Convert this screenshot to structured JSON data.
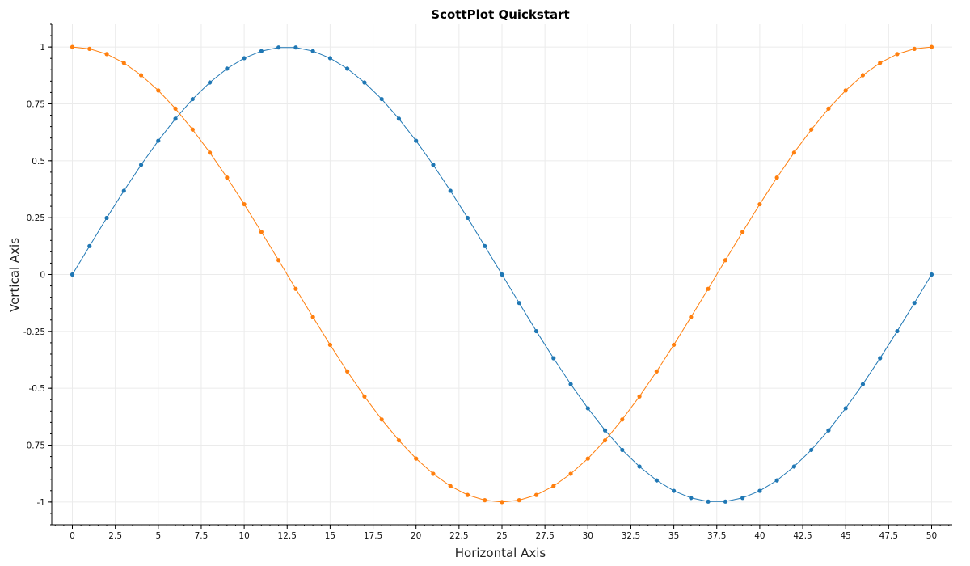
{
  "chart_data": {
    "type": "scatter",
    "title": "ScottPlot Quickstart",
    "xlabel": "Horizontal Axis",
    "ylabel": "Vertical Axis",
    "xlim": [
      -1.2,
      51.2
    ],
    "ylim": [
      -1.1,
      1.1
    ],
    "x_ticks": [
      0,
      2.5,
      5,
      7.5,
      10,
      12.5,
      15,
      17.5,
      20,
      22.5,
      25,
      27.5,
      30,
      32.5,
      35,
      37.5,
      40,
      42.5,
      45,
      47.5,
      50
    ],
    "x_tick_labels": [
      "0",
      "2.5",
      "5",
      "7.5",
      "10",
      "12.5",
      "15",
      "17.5",
      "20",
      "22.5",
      "25",
      "27.5",
      "30",
      "32.5",
      "35",
      "37.5",
      "40",
      "42.5",
      "45",
      "47.5",
      "50"
    ],
    "y_ticks": [
      1,
      0.75,
      0.5,
      0.25,
      0,
      -0.25,
      -0.5,
      -0.75,
      -1
    ],
    "y_tick_labels": [
      "1",
      "0.75",
      "0.5",
      "0.25",
      "0",
      "-0.25",
      "-0.5",
      "-0.75",
      "-1"
    ],
    "grid": true,
    "series": [
      {
        "color": "#1f77b4",
        "x": [
          0,
          1,
          2,
          3,
          4,
          5,
          6,
          7,
          8,
          9,
          10,
          11,
          12,
          13,
          14,
          15,
          16,
          17,
          18,
          19,
          20,
          21,
          22,
          23,
          24,
          25,
          26,
          27,
          28,
          29,
          30,
          31,
          32,
          33,
          34,
          35,
          36,
          37,
          38,
          39,
          40,
          41,
          42,
          43,
          44,
          45,
          46,
          47,
          48,
          49,
          50
        ],
        "y": [
          0,
          0.125,
          0.249,
          0.368,
          0.482,
          0.588,
          0.685,
          0.771,
          0.844,
          0.905,
          0.951,
          0.982,
          0.998,
          0.998,
          0.982,
          0.951,
          0.905,
          0.844,
          0.771,
          0.685,
          0.588,
          0.482,
          0.368,
          0.249,
          0.125,
          0,
          -0.125,
          -0.249,
          -0.368,
          -0.482,
          -0.588,
          -0.685,
          -0.771,
          -0.844,
          -0.905,
          -0.951,
          -0.982,
          -0.998,
          -0.998,
          -0.982,
          -0.951,
          -0.905,
          -0.844,
          -0.771,
          -0.685,
          -0.588,
          -0.482,
          -0.368,
          -0.249,
          -0.125,
          0
        ]
      },
      {
        "color": "#ff7f0e",
        "x": [
          0,
          1,
          2,
          3,
          4,
          5,
          6,
          7,
          8,
          9,
          10,
          11,
          12,
          13,
          14,
          15,
          16,
          17,
          18,
          19,
          20,
          21,
          22,
          23,
          24,
          25,
          26,
          27,
          28,
          29,
          30,
          31,
          32,
          33,
          34,
          35,
          36,
          37,
          38,
          39,
          40,
          41,
          42,
          43,
          44,
          45,
          46,
          47,
          48,
          49,
          50
        ],
        "y": [
          1,
          0.992,
          0.969,
          0.93,
          0.876,
          0.809,
          0.729,
          0.637,
          0.536,
          0.426,
          0.309,
          0.187,
          0.063,
          -0.063,
          -0.187,
          -0.309,
          -0.426,
          -0.536,
          -0.637,
          -0.729,
          -0.809,
          -0.876,
          -0.93,
          -0.969,
          -0.992,
          -1,
          -0.992,
          -0.969,
          -0.93,
          -0.876,
          -0.809,
          -0.729,
          -0.637,
          -0.536,
          -0.426,
          -0.309,
          -0.187,
          -0.063,
          0.063,
          0.187,
          0.309,
          0.426,
          0.536,
          0.637,
          0.729,
          0.809,
          0.876,
          0.93,
          0.969,
          0.992,
          1
        ]
      }
    ]
  }
}
